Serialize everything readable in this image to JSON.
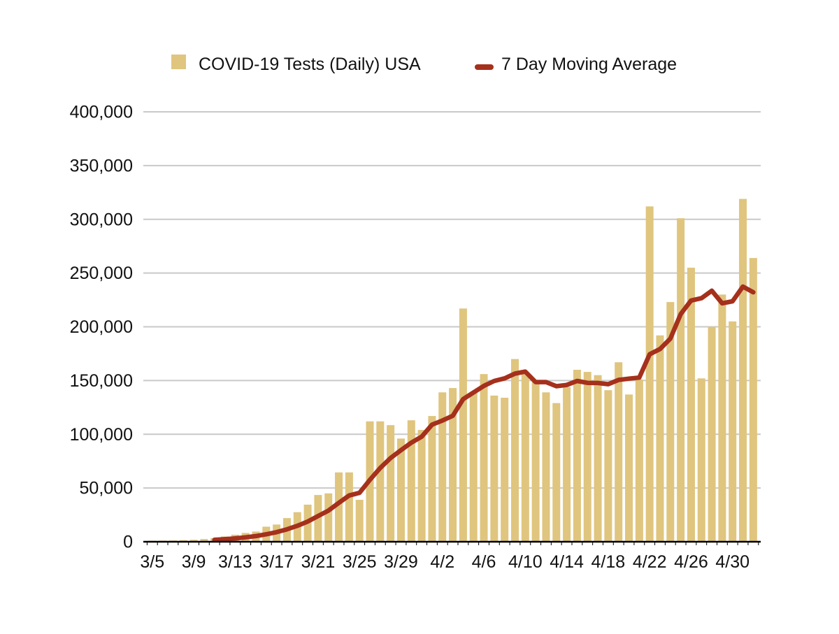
{
  "legend": {
    "bars_label": "COVID-19 Tests (Daily) USA",
    "line_label": "7 Day Moving Average"
  },
  "colors": {
    "bar": "#DFC57E",
    "line": "#A5301C",
    "grid": "#C9C9C9",
    "axis": "#000000",
    "text": "#111111",
    "background": "#FFFFFF"
  },
  "y_axis": {
    "min": 0,
    "max": 400000,
    "step": 50000,
    "tick_labels": [
      "0",
      "50,000",
      "100,000",
      "150,000",
      "200,000",
      "250,000",
      "300,000",
      "350,000",
      "400,000"
    ]
  },
  "x_axis": {
    "tick_labels": [
      "3/5",
      "3/9",
      "3/13",
      "3/17",
      "3/21",
      "3/25",
      "3/29",
      "4/2",
      "4/6",
      "4/10",
      "4/14",
      "4/18",
      "4/22",
      "4/26",
      "4/30"
    ],
    "label_every": 4
  },
  "chart_data": {
    "type": "bar+line",
    "title": "",
    "xlabel": "",
    "ylabel": "",
    "ylim": [
      0,
      400000
    ],
    "grid": "horizontal",
    "legend_position": "top",
    "x": [
      "3/5",
      "3/6",
      "3/7",
      "3/8",
      "3/9",
      "3/10",
      "3/11",
      "3/12",
      "3/13",
      "3/14",
      "3/15",
      "3/16",
      "3/17",
      "3/18",
      "3/19",
      "3/20",
      "3/21",
      "3/22",
      "3/23",
      "3/24",
      "3/25",
      "3/26",
      "3/27",
      "3/28",
      "3/29",
      "3/30",
      "3/31",
      "4/1",
      "4/2",
      "4/3",
      "4/4",
      "4/5",
      "4/6",
      "4/7",
      "4/8",
      "4/9",
      "4/10",
      "4/11",
      "4/12",
      "4/13",
      "4/14",
      "4/15",
      "4/16",
      "4/17",
      "4/18",
      "4/19",
      "4/20",
      "4/21",
      "4/22",
      "4/23",
      "4/24",
      "4/25",
      "4/26",
      "4/27",
      "4/28",
      "4/29",
      "4/30",
      "5/1",
      "5/2"
    ],
    "series": [
      {
        "name": "COVID-19 Tests (Daily) USA",
        "type": "bar",
        "values": [
          1000,
          1100,
          1200,
          1500,
          1800,
          2500,
          3300,
          4900,
          6500,
          8200,
          9500,
          14000,
          16000,
          22000,
          27500,
          34500,
          43500,
          45000,
          64500,
          64500,
          39000,
          112000,
          112000,
          108500,
          96000,
          113000,
          104000,
          117000,
          139000,
          143000,
          217000,
          139000,
          156000,
          136000,
          134000,
          170000,
          156000,
          149000,
          139000,
          129000,
          144000,
          160000,
          158000,
          155000,
          141000,
          167000,
          137000,
          151000,
          312000,
          192000,
          223000,
          301000,
          255000,
          152000,
          200000,
          230000,
          205000,
          319000,
          264000
        ]
      },
      {
        "name": "7 Day Moving Average",
        "type": "line",
        "values": [
          null,
          null,
          null,
          null,
          null,
          null,
          1771,
          2329,
          3100,
          4100,
          5243,
          6986,
          8914,
          11586,
          14814,
          18814,
          23857,
          28929,
          36143,
          43071,
          45500,
          57571,
          68643,
          77929,
          85214,
          92143,
          97786,
          108929,
          112786,
          117214,
          132714,
          138857,
          145000,
          149571,
          152000,
          156429,
          158286,
          148571,
          148571,
          144714,
          145857,
          149571,
          147857,
          147714,
          146571,
          150571,
          151714,
          152714,
          174429,
          179286,
          189000,
          211857,
          224429,
          226571,
          233571,
          221857,
          223714,
          237429,
          232143
        ]
      }
    ]
  }
}
